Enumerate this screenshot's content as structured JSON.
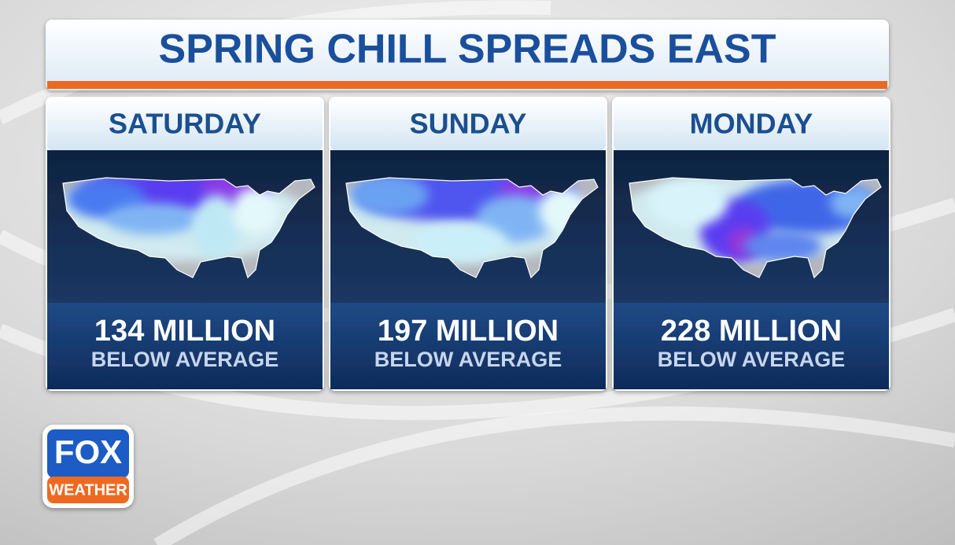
{
  "header": {
    "title": "SPRING CHILL SPREADS EAST"
  },
  "panels": [
    {
      "day": "SATURDAY",
      "count": "134 MILLION",
      "caption": "BELOW AVERAGE"
    },
    {
      "day": "SUNDAY",
      "count": "197 MILLION",
      "caption": "BELOW AVERAGE"
    },
    {
      "day": "MONDAY",
      "count": "228 MILLION",
      "caption": "BELOW AVERAGE"
    }
  ],
  "logo": {
    "top": "FOX",
    "bottom": "WEATHER"
  }
}
